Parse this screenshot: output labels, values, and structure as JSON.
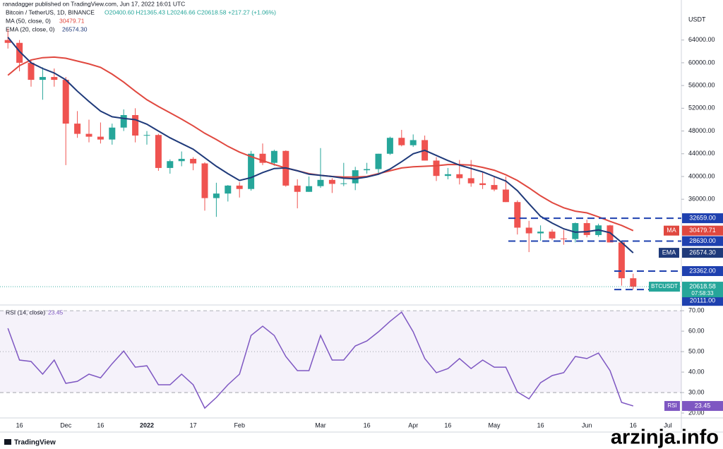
{
  "header": {
    "publisher": "ranadagger published on TradingView.com, Jun 17, 2022 16:01 UTC",
    "symbol": "Bitcoin / TetherUS, 1D, BINANCE",
    "ohlc": "O20400.60 H21365.43 L20246.66 C20618.58 +217.27 (+1.06%)",
    "logo": "TradingView",
    "watermark": "arzinja.info"
  },
  "chart_data": [
    {
      "type": "candlestick",
      "y_unit": "USDT",
      "categories": [
        null,
        "16",
        null,
        null,
        null,
        "Dec",
        null,
        null,
        "16",
        null,
        null,
        null,
        "2022",
        null,
        null,
        null,
        "17",
        null,
        null,
        null,
        "Feb",
        null,
        null,
        null,
        null,
        null,
        null,
        "Mar",
        null,
        null,
        null,
        "16",
        null,
        null,
        null,
        "Apr",
        null,
        null,
        "16",
        null,
        null,
        null,
        "May",
        null,
        null,
        null,
        "16",
        null,
        null,
        null,
        "Jun",
        null,
        null,
        null,
        "16",
        null,
        null,
        "Jul"
      ],
      "candles": {
        "name": "BTCUSDT",
        "up_color": "#26a69a",
        "down_color": "#ef5350",
        "open": [
          64000,
          63500,
          60000,
          57000,
          57500,
          57000,
          49300,
          47500,
          47000,
          46500,
          48600,
          50800,
          47200,
          47300,
          41500,
          42700,
          43100,
          42300,
          36200,
          37000,
          38400,
          37800,
          44000,
          42400,
          44500,
          38400,
          37300,
          38300,
          39400,
          38700,
          38800,
          41100,
          41300,
          44000,
          46800,
          45500,
          46400,
          42800,
          40100,
          40400,
          39700,
          38800,
          38500,
          37700,
          35500,
          31000,
          30000,
          30300,
          29100,
          29000,
          31800,
          29700,
          31400,
          28400,
          22100,
          null,
          null,
          null
        ],
        "high": [
          66000,
          64000,
          60500,
          59200,
          59000,
          57500,
          51500,
          50000,
          49500,
          49300,
          51800,
          52000,
          48000,
          47500,
          43000,
          44400,
          43400,
          42500,
          38900,
          38500,
          39000,
          44500,
          45800,
          44700,
          44600,
          39500,
          40000,
          45000,
          39700,
          42400,
          41700,
          42400,
          44000,
          47000,
          48200,
          47400,
          47200,
          43400,
          41500,
          42900,
          42900,
          40700,
          39900,
          40000,
          35800,
          32200,
          31400,
          30700,
          30600,
          31900,
          32400,
          31700,
          31500,
          28600,
          22900,
          null,
          null,
          null
        ],
        "low": [
          62500,
          58500,
          55800,
          53500,
          55800,
          42000,
          46800,
          46000,
          45800,
          45600,
          48000,
          46000,
          45600,
          41000,
          40500,
          41800,
          41100,
          34000,
          32900,
          35600,
          36300,
          37500,
          42000,
          41900,
          38200,
          34400,
          37300,
          38000,
          37100,
          38300,
          37600,
          40500,
          40600,
          43800,
          45300,
          45200,
          42800,
          39200,
          39500,
          38600,
          38200,
          37800,
          37400,
          35500,
          29800,
          26700,
          28700,
          28800,
          28000,
          28400,
          29300,
          29400,
          28500,
          20800,
          20100,
          null,
          null,
          null
        ],
        "close": [
          63500,
          60000,
          57000,
          57500,
          57000,
          49300,
          47500,
          47000,
          46500,
          48600,
          50800,
          47200,
          47300,
          41500,
          42700,
          43100,
          42300,
          36200,
          37000,
          38400,
          37800,
          44000,
          42400,
          44500,
          38400,
          37300,
          38300,
          39400,
          38700,
          38800,
          41100,
          41300,
          44000,
          46800,
          45500,
          46400,
          42800,
          40100,
          40400,
          39700,
          38800,
          38500,
          37700,
          35500,
          31000,
          30000,
          30300,
          29100,
          29000,
          31800,
          29700,
          31400,
          28400,
          22100,
          20618.58,
          null,
          null,
          null
        ],
        "last_label": "20618.58",
        "countdown": "07:58:33"
      },
      "series": [
        {
          "name": "MA",
          "legend": "MA (50, close, 0)",
          "color": "#e0483f",
          "value_label": "30479.71",
          "values": [
            57800,
            59500,
            60500,
            60900,
            61000,
            60800,
            60300,
            59800,
            59200,
            58000,
            56600,
            55000,
            53500,
            52300,
            51200,
            50100,
            48900,
            47600,
            46500,
            45300,
            44300,
            43500,
            42800,
            42100,
            41500,
            41000,
            40500,
            40200,
            40000,
            39900,
            39900,
            40000,
            40500,
            41000,
            41500,
            41700,
            41800,
            41900,
            42100,
            42100,
            42000,
            41600,
            41100,
            40300,
            39300,
            38000,
            36600,
            35400,
            34500,
            33900,
            33600,
            32900,
            32100,
            31400,
            30479.71,
            null,
            null,
            null
          ]
        },
        {
          "name": "EMA",
          "legend": "EMA (20, close, 0)",
          "color": "#1f3a7a",
          "value_label": "26574.30",
          "values": [
            64500,
            62000,
            60000,
            59000,
            58200,
            57000,
            55000,
            53200,
            51500,
            50500,
            50200,
            50000,
            49200,
            48000,
            46800,
            45800,
            44800,
            43300,
            41800,
            40500,
            39300,
            39800,
            40700,
            41400,
            41500,
            41000,
            40400,
            40200,
            40000,
            39700,
            39600,
            39900,
            40400,
            41300,
            42600,
            44000,
            44600,
            43700,
            42800,
            42000,
            41400,
            40800,
            40000,
            39200,
            37500,
            35200,
            33000,
            31800,
            30800,
            30200,
            30300,
            30600,
            30100,
            28400,
            26574.3,
            null,
            null,
            null
          ]
        }
      ],
      "levels": {
        "color": "#1e40af",
        "values": [
          32659,
          28630,
          23362,
          20111
        ],
        "value_labels": [
          "32659.00",
          "28630.00",
          "23362.00",
          "20111.00"
        ]
      },
      "ylim": [
        17400,
        69800
      ],
      "yticks": [
        {
          "value": 64000,
          "label": "64000.00"
        },
        {
          "value": 60000,
          "label": "60000.00"
        },
        {
          "value": 56000,
          "label": "56000.00"
        },
        {
          "value": 52000,
          "label": "52000.00"
        },
        {
          "value": 48000,
          "label": "48000.00"
        },
        {
          "value": 44000,
          "label": "44000.00"
        },
        {
          "value": 40000,
          "label": "40000.00"
        },
        {
          "value": 36000,
          "label": "36000.00"
        }
      ],
      "grid": false
    },
    {
      "type": "line",
      "series": [
        {
          "name": "RSI",
          "legend": "RSI (14, close)",
          "color": "#7e57c2",
          "value_label": "23.45",
          "values": [
            61.4,
            45.9,
            45.2,
            39.0,
            45.9,
            34.5,
            35.5,
            39.0,
            37.2,
            44.1,
            50.3,
            42.4,
            43.1,
            33.8,
            33.8,
            39.0,
            33.8,
            22.4,
            27.6,
            33.8,
            39.0,
            57.9,
            62.4,
            57.9,
            47.6,
            40.7,
            40.7,
            57.9,
            45.9,
            45.9,
            52.8,
            55.2,
            59.7,
            64.8,
            69.3,
            59.7,
            46.6,
            39.7,
            41.7,
            46.6,
            41.7,
            45.9,
            42.4,
            42.4,
            30.3,
            26.9,
            34.8,
            38.3,
            39.7,
            47.6,
            46.6,
            49.3,
            40.7,
            25.2,
            23.45,
            null,
            null,
            null
          ]
        }
      ],
      "band": [
        30,
        70
      ],
      "midline": 50,
      "ylim": [
        17.6,
        72.8
      ],
      "yticks": [
        {
          "value": 70,
          "label": "70.00"
        },
        {
          "value": 60,
          "label": "60.00"
        },
        {
          "value": 50,
          "label": "50.00"
        },
        {
          "value": 40,
          "label": "40.00"
        },
        {
          "value": 30,
          "label": "30.00"
        },
        {
          "value": 20,
          "label": "20.00"
        }
      ],
      "grid": false
    }
  ]
}
